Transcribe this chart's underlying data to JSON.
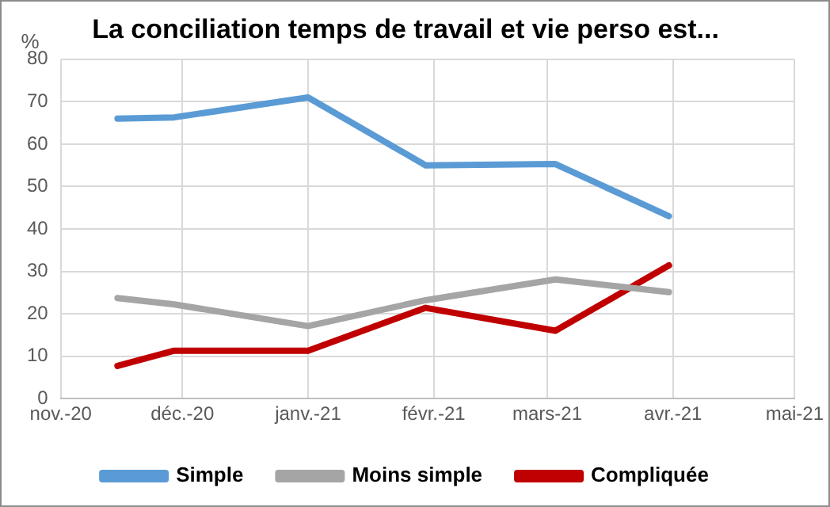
{
  "chart_data": {
    "type": "line",
    "title": "La conciliation temps de travail et vie perso est...",
    "ylabel": "%",
    "x": [
      "2020-11-15",
      "2020-11-29",
      "2021-01-01",
      "2021-01-30",
      "2021-03-03",
      "2021-03-31"
    ],
    "series": [
      {
        "name": "Simple",
        "color": "#5b9bd5",
        "values": [
          66,
          66.3,
          71,
          55,
          55.3,
          43
        ]
      },
      {
        "name": "Moins simple",
        "color": "#a5a5a5",
        "values": [
          23.7,
          22.2,
          17.1,
          23.2,
          28.1,
          25.1
        ]
      },
      {
        "name": "Compliquée",
        "color": "#c00000",
        "values": [
          7.7,
          11.3,
          11.3,
          21.4,
          16,
          31.4
        ]
      }
    ],
    "xlim": [
      "2020-11-01",
      "2021-05-01"
    ],
    "xticks": [
      {
        "value": "2020-11-01",
        "label": "nov.-20"
      },
      {
        "value": "2020-12-01",
        "label": "déc.-20"
      },
      {
        "value": "2021-01-01",
        "label": "janv.-21"
      },
      {
        "value": "2021-02-01",
        "label": "févr.-21"
      },
      {
        "value": "2021-03-01",
        "label": "mars-21"
      },
      {
        "value": "2021-04-01",
        "label": "avr.-21"
      },
      {
        "value": "2021-05-01",
        "label": "mai-21"
      }
    ],
    "ylim": [
      0,
      80
    ],
    "yticks": [
      0,
      10,
      20,
      30,
      40,
      50,
      60,
      70,
      80
    ],
    "grid": true,
    "legend": "bottom",
    "marker": "none",
    "line_style": "solid"
  }
}
